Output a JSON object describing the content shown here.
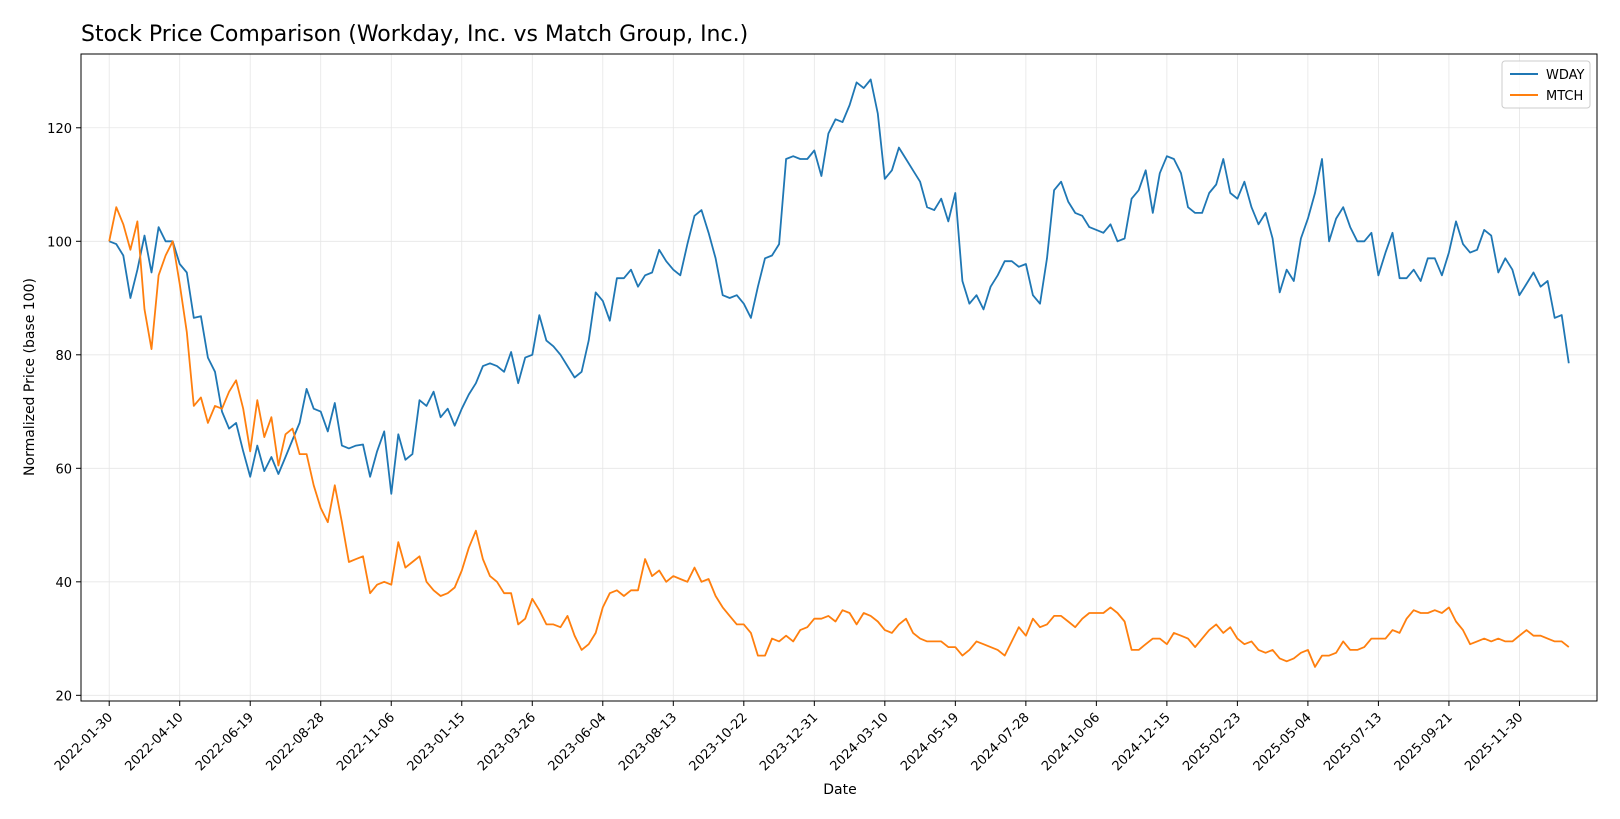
{
  "chart_data": {
    "type": "line",
    "title": "Stock Price Comparison (Workday, Inc. vs Match Group, Inc.)",
    "xlabel": "Date",
    "ylabel": "Normalized Price (base 100)",
    "ylim": [
      19,
      133
    ],
    "xlim": [
      "2022-01-02",
      "2026-02-15"
    ],
    "yticks": [
      20,
      40,
      60,
      80,
      100,
      120
    ],
    "xticks": [
      "2022-01-30",
      "2022-04-10",
      "2022-06-19",
      "2022-08-28",
      "2022-11-06",
      "2023-01-15",
      "2023-03-26",
      "2023-06-04",
      "2023-08-13",
      "2023-10-22",
      "2023-12-31",
      "2024-03-10",
      "2024-05-19",
      "2024-07-28",
      "2024-10-06",
      "2024-12-15",
      "2025-02-23",
      "2025-05-04",
      "2025-07-13",
      "2025-09-21",
      "2025-11-30"
    ],
    "grid": true,
    "legend_position": "top-right",
    "series_start": "2022-01-30",
    "series_step_days": 7,
    "series": [
      {
        "name": "WDAY",
        "color": "#1f77b4",
        "values": [
          100,
          99.5,
          97.5,
          90,
          95,
          101,
          94.5,
          102.5,
          100,
          100,
          96,
          94.5,
          86.5,
          86.8,
          79.5,
          77,
          70,
          67,
          68,
          63,
          58.5,
          64,
          59.5,
          62,
          59,
          62,
          65,
          68,
          74,
          70.5,
          70,
          66.5,
          71.5,
          64,
          63.5,
          64,
          64.2,
          58.5,
          63,
          66.5,
          55.5,
          66,
          61.5,
          62.5,
          72,
          71,
          73.5,
          69,
          70.5,
          67.5,
          70.5,
          73,
          75,
          78,
          78.5,
          78,
          77,
          80.5,
          75,
          79.5,
          80,
          87,
          82.5,
          81.5,
          80,
          78,
          76,
          77,
          82.5,
          91,
          89.5,
          86,
          93.5,
          93.5,
          95,
          92,
          94,
          94.5,
          98.5,
          96.5,
          95,
          94,
          99.5,
          104.5,
          105.5,
          101.5,
          97,
          90.5,
          90,
          90.5,
          89,
          86.5,
          92,
          97,
          97.5,
          99.5,
          114.5,
          115,
          114.5,
          114.5,
          116,
          111.5,
          119,
          121.5,
          121,
          124,
          128,
          127,
          128.5,
          122.5,
          111,
          112.5,
          116.5,
          114.5,
          112.5,
          110.5,
          106,
          105.5,
          107.5,
          103.5,
          108.5,
          93,
          89,
          90.5,
          88,
          92,
          94,
          96.5,
          96.5,
          95.5,
          96,
          90.5,
          89,
          97,
          109,
          110.5,
          107,
          105,
          104.5,
          102.5,
          102,
          101.5,
          103,
          100,
          100.5,
          107.5,
          109,
          112.5,
          105,
          112,
          115,
          114.5,
          112,
          106,
          105,
          105,
          108.5,
          110,
          114.5,
          108.5,
          107.5,
          110.5,
          106,
          103,
          105,
          100.5,
          91,
          95,
          93,
          100.5,
          104,
          108.5,
          114.5,
          100,
          104,
          106,
          102.5,
          100,
          100,
          101.5,
          94,
          98,
          101.5,
          93.5,
          93.5,
          95,
          93,
          97,
          97,
          94,
          98,
          103.5,
          99.5,
          98,
          98.5,
          102,
          101,
          94.5,
          97,
          95,
          90.5,
          92.5,
          94.5,
          92,
          93,
          86.5,
          87,
          78.5
        ]
      },
      {
        "name": "MTCH",
        "color": "#ff7f0e",
        "values": [
          100,
          106,
          103,
          98.5,
          103.5,
          88,
          81,
          94,
          97.5,
          100,
          92.5,
          84,
          71,
          72.5,
          68,
          71,
          70.5,
          73.5,
          75.5,
          70.5,
          63,
          72,
          65.5,
          69,
          60.5,
          66,
          67,
          62.5,
          62.5,
          57,
          53,
          50.5,
          57,
          50.5,
          43.5,
          44,
          44.5,
          38,
          39.5,
          40,
          39.5,
          47,
          42.5,
          43.5,
          44.5,
          40,
          38.5,
          37.5,
          38,
          39,
          42,
          46,
          49,
          44,
          41,
          40,
          38,
          38,
          32.5,
          33.5,
          37,
          35,
          32.5,
          32.5,
          32,
          34,
          30.5,
          28,
          29,
          31,
          35.5,
          38,
          38.5,
          37.5,
          38.5,
          38.5,
          44,
          41,
          42,
          40,
          41,
          40.5,
          40,
          42.5,
          40,
          40.5,
          37.5,
          35.5,
          34,
          32.5,
          32.5,
          31,
          27,
          27,
          30,
          29.5,
          30.5,
          29.5,
          31.5,
          32,
          33.5,
          33.5,
          34,
          33,
          35,
          34.5,
          32.5,
          34.5,
          34,
          33,
          31.5,
          31,
          32.5,
          33.5,
          31,
          30,
          29.5,
          29.5,
          29.5,
          28.5,
          28.5,
          27,
          28,
          29.5,
          29,
          28.5,
          28,
          27,
          29.5,
          32,
          30.5,
          33.5,
          32,
          32.5,
          34,
          34,
          33,
          32,
          33.5,
          34.5,
          34.5,
          34.5,
          35.5,
          34.5,
          33,
          28,
          28,
          29,
          30,
          30,
          29,
          31,
          30.5,
          30,
          28.5,
          30,
          31.5,
          32.5,
          31,
          32,
          30,
          29,
          29.5,
          28,
          27.5,
          28,
          26.5,
          26,
          26.5,
          27.5,
          28,
          25,
          27,
          27,
          27.5,
          29.5,
          28,
          28,
          28.5,
          30,
          30,
          30,
          31.5,
          31,
          33.5,
          35,
          34.5,
          34.5,
          35,
          34.5,
          35.5,
          33,
          31.5,
          29,
          29.5,
          30,
          29.5,
          30,
          29.5,
          29.5,
          30.5,
          31.5,
          30.5,
          30.5,
          30,
          29.5,
          29.5,
          28.5
        ]
      }
    ]
  }
}
